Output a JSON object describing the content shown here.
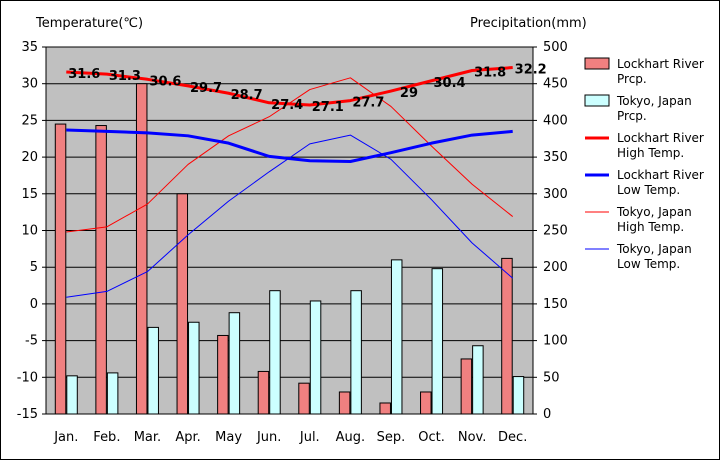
{
  "chart_data": {
    "type": "bar",
    "categories": [
      "Jan.",
      "Feb.",
      "Mar.",
      "Apr.",
      "May",
      "Jun.",
      "Jul.",
      "Aug.",
      "Sep.",
      "Oct.",
      "Nov.",
      "Dec."
    ],
    "left_axis": {
      "title": "Temperature(℃)",
      "min": -15,
      "max": 35,
      "step": 5
    },
    "right_axis": {
      "title": "Precipitation(mm)",
      "min": 0,
      "max": 500,
      "step": 50
    },
    "grid": true,
    "legend_position": "right",
    "bar_series": [
      {
        "name": "Lockhart River Prcp.",
        "color": "#f08080",
        "values": [
          395,
          393,
          450,
          300,
          107,
          58,
          42,
          30,
          15,
          30,
          75,
          212
        ]
      },
      {
        "name": "Tokyo, Japan Prcp.",
        "color": "#ccffff",
        "values": [
          52,
          56,
          118,
          125,
          138,
          168,
          154,
          168,
          210,
          198,
          93,
          51
        ]
      }
    ],
    "line_series": [
      {
        "name": "Lockhart River High Temp.",
        "color": "#ff0000",
        "width": "thick",
        "values": [
          31.6,
          31.3,
          30.6,
          29.7,
          28.7,
          27.4,
          27.1,
          27.7,
          29.0,
          30.4,
          31.8,
          32.2
        ],
        "data_labels": [
          "31.6",
          "31.3",
          "30.6",
          "29.7",
          "28.7",
          "27.4",
          "27.1",
          "27.7",
          "29",
          "30.4",
          "31.8",
          "32.2"
        ]
      },
      {
        "name": "Lockhart River Low Temp.",
        "color": "#0000ff",
        "width": "thick",
        "values": [
          23.7,
          23.5,
          23.3,
          22.9,
          21.9,
          20.1,
          19.5,
          19.4,
          20.6,
          21.9,
          23.0,
          23.5
        ]
      },
      {
        "name": "Tokyo, Japan High Temp.",
        "color": "#ff0000",
        "width": "thin",
        "values": [
          9.8,
          10.5,
          13.6,
          19.0,
          22.9,
          25.5,
          29.2,
          30.8,
          26.9,
          21.5,
          16.3,
          11.9
        ]
      },
      {
        "name": "Tokyo, Japan Low Temp.",
        "color": "#0000ff",
        "width": "thin",
        "values": [
          0.9,
          1.7,
          4.4,
          9.4,
          14.0,
          18.0,
          21.8,
          23.0,
          19.7,
          14.2,
          8.3,
          3.5
        ]
      }
    ],
    "legend": [
      {
        "lines": [
          "Lockhart River",
          "Prcp."
        ],
        "kind": "bar",
        "series": "Lockhart River Prcp."
      },
      {
        "lines": [
          "Tokyo, Japan",
          "Prcp."
        ],
        "kind": "bar",
        "series": "Tokyo, Japan Prcp."
      },
      {
        "lines": [
          "Lockhart River",
          "High Temp."
        ],
        "kind": "line",
        "series": "Lockhart River High Temp."
      },
      {
        "lines": [
          "Lockhart River",
          "Low Temp."
        ],
        "kind": "line",
        "series": "Lockhart River Low Temp."
      },
      {
        "lines": [
          "Tokyo, Japan",
          "High Temp."
        ],
        "kind": "line",
        "series": "Tokyo, Japan High Temp."
      },
      {
        "lines": [
          "Tokyo, Japan",
          "Low Temp."
        ],
        "kind": "line",
        "series": "Tokyo, Japan Low Temp."
      }
    ]
  }
}
